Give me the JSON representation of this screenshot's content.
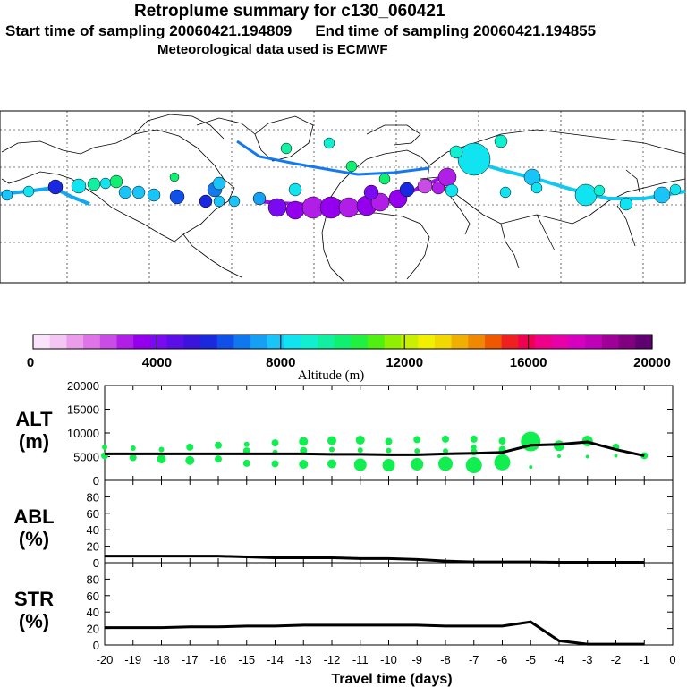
{
  "header": {
    "title": "Retroplume summary for c130_060421",
    "start_label": "Start time of sampling 20060421.194809",
    "end_label": "End time of sampling 20060421.194855",
    "met_label": "Meteorological data used is ECMWF"
  },
  "colorbar": {
    "title": "Altitude (m)",
    "ticks": [
      "0",
      "4000",
      "8000",
      "12000",
      "16000",
      "20000"
    ],
    "colors": [
      "#fbe3fb",
      "#f4c6f4",
      "#eb9deb",
      "#df74e8",
      "#c94ce6",
      "#b01ee8",
      "#9400ee",
      "#7a0af0",
      "#5c0ee8",
      "#3a14dc",
      "#1a28e0",
      "#1050e8",
      "#1078ee",
      "#14a0f4",
      "#18c4f8",
      "#10e4f0",
      "#10f0d0",
      "#10f0a0",
      "#10f070",
      "#20f040",
      "#50f010",
      "#90f000",
      "#c8f000",
      "#f0f000",
      "#f0d800",
      "#f0b000",
      "#f08800",
      "#f05800",
      "#f02020",
      "#f00050",
      "#f00088",
      "#e800a8",
      "#d800c0",
      "#c000b8",
      "#a00098",
      "#800080",
      "#600070"
    ]
  },
  "chart_data": [
    {
      "type": "scatter",
      "name": "ALT",
      "ylabel": "ALT\n(m)",
      "ylabel_line1": "ALT",
      "ylabel_line2": "(m)",
      "xlabel": "Travel time (days)",
      "xlim": [
        -20,
        0
      ],
      "ylim": [
        0,
        20000
      ],
      "yticks": [
        "0",
        "5000",
        "10000",
        "15000",
        "20000"
      ],
      "median_line": {
        "x": [
          -20,
          -19,
          -18,
          -17,
          -16,
          -15,
          -14,
          -13,
          -12,
          -11,
          -10,
          -9,
          -8,
          -7,
          -6,
          -5,
          -4,
          -3,
          -2,
          -1
        ],
        "y": [
          5600,
          5600,
          5600,
          5600,
          5600,
          5600,
          5600,
          5600,
          5500,
          5500,
          5400,
          5400,
          5600,
          5700,
          5900,
          7400,
          7600,
          8100,
          6500,
          5200
        ]
      },
      "points": [
        {
          "x": -20,
          "y": 7000,
          "s": 3
        },
        {
          "x": -20,
          "y": 5200,
          "s": 4
        },
        {
          "x": -19,
          "y": 6800,
          "s": 3
        },
        {
          "x": -19,
          "y": 4800,
          "s": 4
        },
        {
          "x": -18,
          "y": 6500,
          "s": 3
        },
        {
          "x": -18,
          "y": 4500,
          "s": 5
        },
        {
          "x": -17,
          "y": 7000,
          "s": 4
        },
        {
          "x": -17,
          "y": 4200,
          "s": 5
        },
        {
          "x": -16,
          "y": 7400,
          "s": 4
        },
        {
          "x": -16,
          "y": 4500,
          "s": 4
        },
        {
          "x": -15,
          "y": 7600,
          "s": 3
        },
        {
          "x": -15,
          "y": 6200,
          "s": 4
        },
        {
          "x": -15,
          "y": 3600,
          "s": 4
        },
        {
          "x": -14,
          "y": 7900,
          "s": 4
        },
        {
          "x": -14,
          "y": 5900,
          "s": 3
        },
        {
          "x": -14,
          "y": 3500,
          "s": 4
        },
        {
          "x": -13,
          "y": 8200,
          "s": 5
        },
        {
          "x": -13,
          "y": 6300,
          "s": 4
        },
        {
          "x": -13,
          "y": 3400,
          "s": 5
        },
        {
          "x": -12,
          "y": 8400,
          "s": 5
        },
        {
          "x": -12,
          "y": 6500,
          "s": 3
        },
        {
          "x": -12,
          "y": 3500,
          "s": 5
        },
        {
          "x": -11,
          "y": 8500,
          "s": 5
        },
        {
          "x": -11,
          "y": 6400,
          "s": 3
        },
        {
          "x": -11,
          "y": 3300,
          "s": 7
        },
        {
          "x": -10,
          "y": 8200,
          "s": 4
        },
        {
          "x": -10,
          "y": 6300,
          "s": 3
        },
        {
          "x": -10,
          "y": 3200,
          "s": 7
        },
        {
          "x": -9,
          "y": 8600,
          "s": 4
        },
        {
          "x": -9,
          "y": 6200,
          "s": 3
        },
        {
          "x": -9,
          "y": 3400,
          "s": 7
        },
        {
          "x": -8,
          "y": 8700,
          "s": 4
        },
        {
          "x": -8,
          "y": 6200,
          "s": 3
        },
        {
          "x": -8,
          "y": 3500,
          "s": 8
        },
        {
          "x": -7,
          "y": 8700,
          "s": 4
        },
        {
          "x": -7,
          "y": 7000,
          "s": 3
        },
        {
          "x": -7,
          "y": 6000,
          "s": 4
        },
        {
          "x": -7,
          "y": 3200,
          "s": 9
        },
        {
          "x": -6,
          "y": 8300,
          "s": 4
        },
        {
          "x": -6,
          "y": 6500,
          "s": 4
        },
        {
          "x": -6,
          "y": 3800,
          "s": 9
        },
        {
          "x": -5,
          "y": 8200,
          "s": 11
        },
        {
          "x": -5,
          "y": 2800,
          "s": 2
        },
        {
          "x": -4,
          "y": 7300,
          "s": 6
        },
        {
          "x": -4,
          "y": 5100,
          "s": 2
        },
        {
          "x": -3,
          "y": 8300,
          "s": 6
        },
        {
          "x": -3,
          "y": 5000,
          "s": 2
        },
        {
          "x": -2,
          "y": 7000,
          "s": 4
        },
        {
          "x": -2,
          "y": 5200,
          "s": 2
        },
        {
          "x": -1,
          "y": 5200,
          "s": 4
        }
      ]
    },
    {
      "type": "line",
      "name": "ABL",
      "ylabel_line1": "ABL",
      "ylabel_line2": "(%)",
      "ylim": [
        0,
        100
      ],
      "yticks": [
        "0",
        "20",
        "40",
        "60",
        "80"
      ],
      "x": [
        -20,
        -19,
        -18,
        -17,
        -16,
        -15,
        -14,
        -13,
        -12,
        -11,
        -10,
        -9,
        -8,
        -7,
        -6,
        -5,
        -4,
        -3,
        -2,
        -1
      ],
      "y": [
        8,
        8,
        8,
        8,
        8,
        7,
        6,
        6,
        6,
        5,
        5,
        4,
        2,
        1,
        1,
        1,
        0.5,
        0.5,
        0.5,
        0.5
      ]
    },
    {
      "type": "line",
      "name": "STR",
      "ylabel_line1": "STR",
      "ylabel_line2": "(%)",
      "ylim": [
        0,
        100
      ],
      "yticks": [
        "0",
        "20",
        "40",
        "60",
        "80"
      ],
      "xticks": [
        "-20",
        "-19",
        "-18",
        "-17",
        "-16",
        "-15",
        "-14",
        "-13",
        "-12",
        "-11",
        "-10",
        "-9",
        "-8",
        "-7",
        "-6",
        "-5",
        "-4",
        "-3",
        "-2",
        "-1",
        "0"
      ],
      "x": [
        -20,
        -19,
        -18,
        -17,
        -16,
        -15,
        -14,
        -13,
        -12,
        -11,
        -10,
        -9,
        -8,
        -7,
        -6,
        -5,
        -4,
        -3,
        -2,
        -1
      ],
      "y": [
        21,
        21,
        21,
        22,
        22,
        23,
        23,
        24,
        24,
        24,
        24,
        24,
        23,
        23,
        23,
        28,
        5,
        1,
        1,
        1
      ]
    }
  ]
}
